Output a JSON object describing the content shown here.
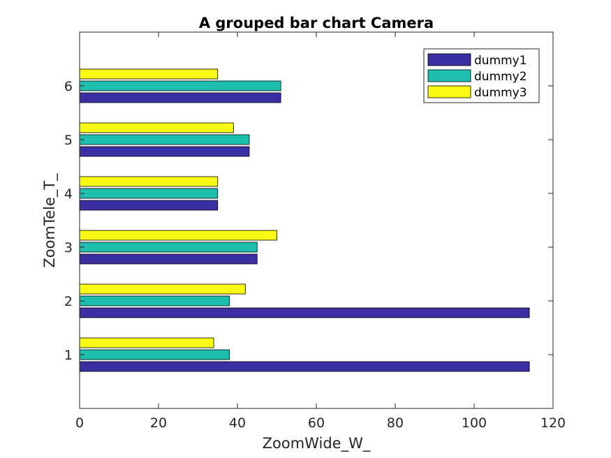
{
  "chart_data": {
    "type": "bar",
    "orientation": "horizontal",
    "title": "A grouped bar chart Camera",
    "xlabel": "ZoomWide_W_",
    "ylabel": "ZoomTele_T_",
    "categories": [
      "1",
      "2",
      "3",
      "4",
      "5",
      "6"
    ],
    "series": [
      {
        "name": "dummy1",
        "color": "#3b2fa3",
        "values": [
          114,
          114,
          45,
          35,
          43,
          51
        ]
      },
      {
        "name": "dummy2",
        "color": "#1fbfb0",
        "values": [
          38,
          38,
          45,
          35,
          43,
          51
        ]
      },
      {
        "name": "dummy3",
        "color": "#f9fa14",
        "values": [
          34,
          42,
          50,
          35,
          39,
          35
        ]
      }
    ],
    "xlim": [
      0,
      120
    ],
    "ylim": [
      0,
      7
    ],
    "xticks": [
      "0",
      "20",
      "40",
      "60",
      "80",
      "100",
      "120"
    ],
    "yticks": [
      "1",
      "2",
      "3",
      "4",
      "5",
      "6"
    ],
    "grid": false,
    "legend_position": "top-right"
  }
}
